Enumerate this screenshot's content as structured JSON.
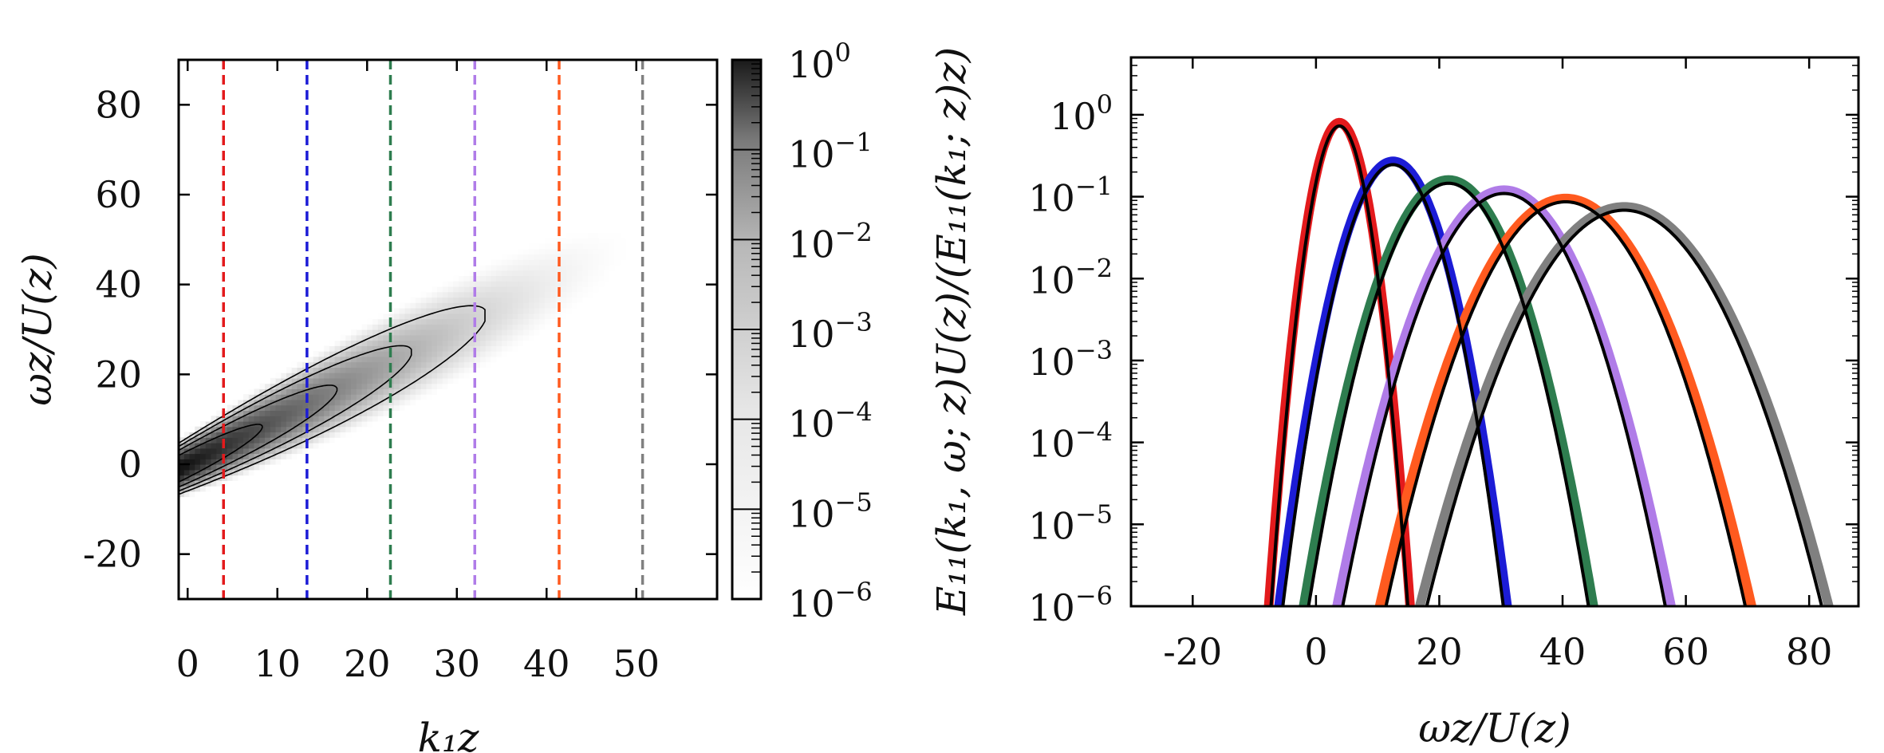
{
  "chart_data": [
    {
      "type": "heatmap",
      "xlabel": "k₁z",
      "ylabel": "ωz/U(z)",
      "xlim": [
        -1,
        59
      ],
      "ylim": [
        -30,
        90
      ],
      "xticks": [
        0,
        10,
        20,
        30,
        40,
        50
      ],
      "xtick_labels": [
        "0",
        "10",
        "20",
        "30",
        "40",
        "50"
      ],
      "yticks": [
        -20,
        0,
        20,
        40,
        60,
        80
      ],
      "ytick_labels": [
        "-20",
        "0",
        "20",
        "40",
        "60",
        "80"
      ],
      "ridge": {
        "slope": 1.0,
        "intercept": 0.0
      },
      "contour_levels_log10": [
        -1,
        -2,
        -3,
        -4
      ],
      "colorbar": {
        "scale": "log",
        "range": [
          1e-06,
          1
        ],
        "labels": [
          {
            "base": "10",
            "exp": "0"
          },
          {
            "base": "10",
            "exp": "−1"
          },
          {
            "base": "10",
            "exp": "−2"
          },
          {
            "base": "10",
            "exp": "−3"
          },
          {
            "base": "10",
            "exp": "−4"
          },
          {
            "base": "10",
            "exp": "−5"
          },
          {
            "base": "10",
            "exp": "−6"
          }
        ]
      },
      "vlines": [
        {
          "x": 4.0,
          "color": "#e31a1c"
        },
        {
          "x": 13.3,
          "color": "#1c1cd6"
        },
        {
          "x": 22.6,
          "color": "#2e7d4f"
        },
        {
          "x": 32.0,
          "color": "#b07ce8"
        },
        {
          "x": 41.4,
          "color": "#ff5a1f"
        },
        {
          "x": 50.7,
          "color": "#808080"
        }
      ]
    },
    {
      "type": "line",
      "yscale": "log",
      "xlabel": "ωz/U(z)",
      "ylabel": "E₁₁(k₁, ω; z)U(z)/(E₁₁(k₁; z)z)",
      "xlim": [
        -30,
        88
      ],
      "ylim_log10": [
        -6,
        0.7
      ],
      "xticks": [
        -20,
        0,
        20,
        40,
        60,
        80
      ],
      "xtick_labels": [
        "-20",
        "0",
        "20",
        "40",
        "60",
        "80"
      ],
      "ytick_labels": [
        {
          "base": "10",
          "exp": "0"
        },
        {
          "base": "10",
          "exp": "−1"
        },
        {
          "base": "10",
          "exp": "−2"
        },
        {
          "base": "10",
          "exp": "−3"
        },
        {
          "base": "10",
          "exp": "−4"
        },
        {
          "base": "10",
          "exp": "−5"
        },
        {
          "base": "10",
          "exp": "−6"
        }
      ],
      "series": [
        {
          "k1z": 4.0,
          "center": 3.8,
          "peak": 0.8,
          "sigma": 2.2,
          "color": "#e31a1c"
        },
        {
          "k1z": 13.3,
          "center": 12.5,
          "peak": 0.27,
          "sigma": 3.7,
          "color": "#1c1cd6"
        },
        {
          "k1z": 22.6,
          "center": 21.5,
          "peak": 0.16,
          "sigma": 4.8,
          "color": "#2e7d4f"
        },
        {
          "k1z": 32.0,
          "center": 30.5,
          "peak": 0.12,
          "sigma": 5.6,
          "color": "#b07ce8"
        },
        {
          "k1z": 41.4,
          "center": 40.5,
          "peak": 0.095,
          "sigma": 6.3,
          "color": "#ff5a1f"
        },
        {
          "k1z": 50.7,
          "center": 50.0,
          "peak": 0.075,
          "sigma": 7.0,
          "color": "#808080"
        }
      ],
      "fit_color": "#000000"
    }
  ]
}
